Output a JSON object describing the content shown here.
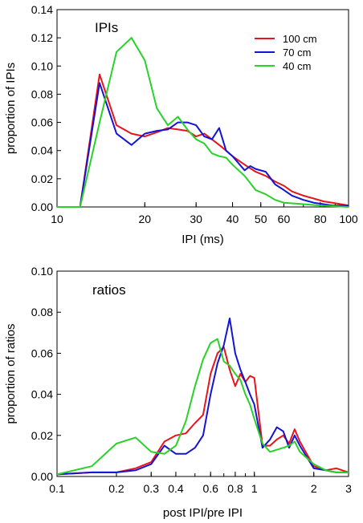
{
  "chart_data": [
    {
      "type": "line",
      "title": "IPIs",
      "xlabel": "IPI (ms)",
      "ylabel": "proportion of IPIs",
      "xscale": "log",
      "xlim": [
        10,
        100
      ],
      "ylim": [
        0,
        0.14
      ],
      "xticks": [
        10,
        20,
        30,
        40,
        50,
        60,
        80,
        100
      ],
      "xtick_labels": [
        "10",
        "20",
        "30",
        "40",
        "50",
        "60",
        "80",
        "100"
      ],
      "yticks": [
        0,
        0.02,
        0.04,
        0.06,
        0.08,
        0.1,
        0.12,
        0.14
      ],
      "ytick_labels": [
        "0.00",
        "0.02",
        "0.04",
        "0.06",
        "0.08",
        "0.10",
        "0.12",
        "0.14"
      ],
      "legend": "top-right",
      "series": [
        {
          "name": "100 cm",
          "color": "#e8141c",
          "x": [
            10,
            12,
            14,
            16,
            18,
            20,
            22,
            24,
            26,
            28,
            30,
            32,
            34,
            36,
            38,
            40,
            44,
            48,
            52,
            56,
            60,
            64,
            70,
            76,
            82,
            88,
            94,
            100
          ],
          "y": [
            0,
            0,
            0.094,
            0.058,
            0.052,
            0.05,
            0.053,
            0.056,
            0.055,
            0.054,
            0.05,
            0.052,
            0.048,
            0.044,
            0.04,
            0.036,
            0.03,
            0.025,
            0.022,
            0.018,
            0.015,
            0.011,
            0.008,
            0.006,
            0.004,
            0.003,
            0.002,
            0.001
          ]
        },
        {
          "name": "70 cm",
          "color": "#1414d2",
          "x": [
            10,
            12,
            14,
            16,
            18,
            20,
            22,
            24,
            26,
            28,
            30,
            32,
            34,
            36,
            38,
            40,
            44,
            46,
            48,
            52,
            56,
            60,
            64,
            70,
            76,
            82,
            88,
            100
          ],
          "y": [
            0,
            0,
            0.088,
            0.052,
            0.044,
            0.052,
            0.054,
            0.055,
            0.06,
            0.06,
            0.058,
            0.05,
            0.048,
            0.056,
            0.04,
            0.036,
            0.026,
            0.029,
            0.027,
            0.025,
            0.016,
            0.012,
            0.008,
            0.005,
            0.003,
            0.002,
            0.001,
            0.001
          ]
        },
        {
          "name": "40 cm",
          "color": "#28d228",
          "x": [
            10,
            12,
            14,
            16,
            18,
            20,
            22,
            24,
            26,
            28,
            30,
            32,
            34,
            36,
            38,
            40,
            44,
            48,
            52,
            56,
            60,
            70,
            80,
            100
          ],
          "y": [
            0,
            0,
            0.06,
            0.11,
            0.12,
            0.104,
            0.07,
            0.058,
            0.064,
            0.055,
            0.048,
            0.045,
            0.038,
            0.036,
            0.035,
            0.03,
            0.022,
            0.012,
            0.009,
            0.005,
            0.003,
            0.002,
            0.001,
            0
          ]
        }
      ]
    },
    {
      "type": "line",
      "title": "ratios",
      "xlabel": "post IPI/pre IPI",
      "ylabel": "proportion of ratios",
      "xscale": "log",
      "xlim": [
        0.1,
        3
      ],
      "ylim": [
        0,
        0.1
      ],
      "xticks": [
        0.1,
        0.2,
        0.3,
        0.4,
        0.6,
        0.8,
        1,
        2,
        3
      ],
      "xtick_labels": [
        "0.1",
        "0.2",
        "0.3",
        "0.4",
        "0.6",
        "0.8",
        "1",
        "2",
        "3"
      ],
      "yticks": [
        0,
        0.02,
        0.04,
        0.06,
        0.08,
        0.1
      ],
      "ytick_labels": [
        "0.00",
        "0.02",
        "0.04",
        "0.06",
        "0.08",
        "0.10"
      ],
      "series": [
        {
          "name": "100 cm",
          "color": "#e8141c",
          "x": [
            0.1,
            0.15,
            0.2,
            0.25,
            0.3,
            0.35,
            0.4,
            0.45,
            0.5,
            0.55,
            0.6,
            0.65,
            0.7,
            0.75,
            0.8,
            0.85,
            0.9,
            0.95,
            1.0,
            1.1,
            1.2,
            1.3,
            1.4,
            1.5,
            1.6,
            1.7,
            2.0,
            2.3,
            2.6,
            3.0
          ],
          "y": [
            0.001,
            0.002,
            0.002,
            0.004,
            0.007,
            0.017,
            0.02,
            0.021,
            0.026,
            0.03,
            0.05,
            0.06,
            0.063,
            0.052,
            0.044,
            0.05,
            0.046,
            0.049,
            0.048,
            0.015,
            0.015,
            0.018,
            0.02,
            0.016,
            0.023,
            0.017,
            0.005,
            0.003,
            0.004,
            0.002
          ]
        },
        {
          "name": "70 cm",
          "color": "#1414d2",
          "x": [
            0.1,
            0.15,
            0.2,
            0.25,
            0.3,
            0.35,
            0.4,
            0.45,
            0.5,
            0.55,
            0.6,
            0.65,
            0.7,
            0.75,
            0.8,
            0.85,
            0.9,
            0.95,
            1.0,
            1.1,
            1.2,
            1.3,
            1.4,
            1.5,
            1.6,
            1.7,
            2.0,
            2.3,
            2.6,
            3.0
          ],
          "y": [
            0.001,
            0.002,
            0.002,
            0.003,
            0.006,
            0.015,
            0.011,
            0.011,
            0.014,
            0.02,
            0.04,
            0.055,
            0.064,
            0.077,
            0.06,
            0.052,
            0.046,
            0.04,
            0.035,
            0.014,
            0.018,
            0.024,
            0.022,
            0.014,
            0.02,
            0.015,
            0.004,
            0.003,
            0.002,
            0.002
          ]
        },
        {
          "name": "40 cm",
          "color": "#28d228",
          "x": [
            0.1,
            0.15,
            0.2,
            0.25,
            0.3,
            0.35,
            0.4,
            0.45,
            0.5,
            0.55,
            0.6,
            0.65,
            0.7,
            0.75,
            0.8,
            0.85,
            0.9,
            0.95,
            1.0,
            1.1,
            1.2,
            1.3,
            1.4,
            1.5,
            1.6,
            1.7,
            2.0,
            2.3,
            2.6,
            3.0
          ],
          "y": [
            0.001,
            0.005,
            0.016,
            0.019,
            0.012,
            0.011,
            0.015,
            0.027,
            0.044,
            0.057,
            0.065,
            0.067,
            0.056,
            0.054,
            0.05,
            0.047,
            0.04,
            0.035,
            0.028,
            0.016,
            0.012,
            0.013,
            0.014,
            0.015,
            0.017,
            0.012,
            0.006,
            0.003,
            0.002,
            0.002
          ]
        }
      ]
    }
  ]
}
